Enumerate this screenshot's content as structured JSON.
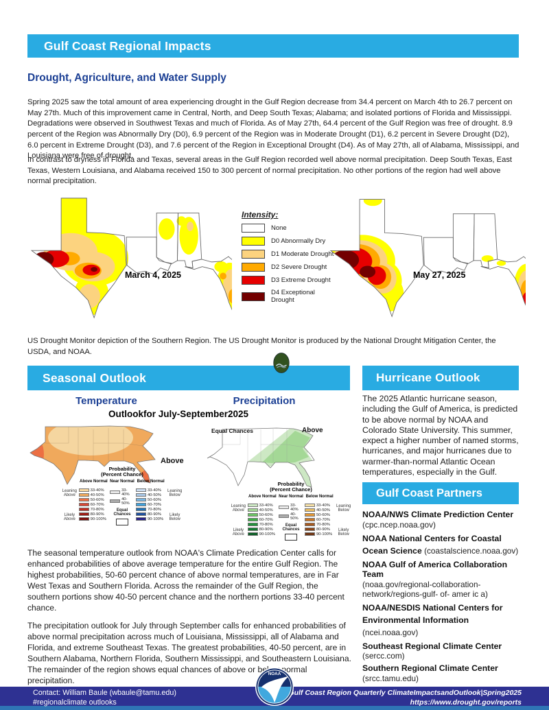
{
  "header": {
    "title": "Gulf Coast Regional Impacts"
  },
  "drought": {
    "heading": "Drought, Agriculture, and Water Supply",
    "para1": "Spring 2025 saw the total amount of area experiencing drought in the Gulf Region decrease from 34.4 percent on March 4th to 26.7 percent on May 27th. Much of this improvement came in Central, North, and Deep South Texas; Alabama; and isolated portions of Florida and Mississippi. Degradations were observed in Southwest Texas and much of Florida. As of May 27th, 64.4 percent of the Gulf Region was free of drought. 8.9 percent of the Region was Abnormally Dry (D0), 6.9 percent of the Region was in Moderate Drought (D1), 6.2 percent in Severe Drought (D2), 6.0 percent in Extreme Drought (D3), and 7.6 percent of the Region in Exceptional Drought (D4). As of May 27th, all of Alabama, Mississippi, and Louisiana were free of drought.",
    "para2": "In contrast to dryness in Florida and Texas, several areas in the Gulf Region recorded well above normal precipitation. Deep South Texas, East Texas, Western Louisiana, and Alabama received 150 to 300 percent of normal precipitation. No other portions of the region had well above normal precipitation.",
    "legend_title": "Intensity:",
    "legend": [
      {
        "label": "None",
        "color": "#FFFFFF"
      },
      {
        "label": "D0 Abnormally Dry",
        "color": "#FFFF00"
      },
      {
        "label": "D1 Moderate Drought",
        "color": "#FCD37F"
      },
      {
        "label": "D2 Severe Drought",
        "color": "#FFAA00"
      },
      {
        "label": "D3 Extreme Drought",
        "color": "#E60000"
      },
      {
        "label": "D4 Exceptional Drought",
        "color": "#730000"
      }
    ],
    "map_label_march": "March 4, 2025",
    "map_label_may": "May 27, 2025",
    "caption": "US Drought Monitor depiction of the Southern Region. The US Drought Monitor is produced by the National Drought Mitigation Center, the USDA, and NOAA."
  },
  "seasonal": {
    "banner": "Seasonal Outlook",
    "temperature_heading": "Temperature",
    "precipitation_heading": "Precipitation",
    "subtitle": "Outlookfor July-September2025",
    "para1": "The seasonal temperature outlook from NOAA's Climate Predication Center calls for enhanced probabilities of above average temperature for the entire Gulf Region. The highest probabilities, 50-60 percent chance of above normal temperatures, are in Far West Texas and Southern Florida. Across the remainder of the Gulf Region, the southern portions show 40-50 percent chance and the northern portions 33-40 percent chance.",
    "para2": "The precipitation outlook for July through September calls for enhanced probabilities of above normal precipitation across much of Louisiana, Mississippi, all of Alabama and Florida, and extreme Southeast Texas. The greatest probabilities, 40-50 percent, are in Southern Alabama, Northern Florida, Southern Mississippi, and Southeastern Louisiana. The remainder of the region shows equal chances of above or below normal precipitation."
  },
  "cpc": {
    "legend_title1": "Probability",
    "legend_title2": "(Percent Chance)",
    "col_above": "Above Normal",
    "col_near": "Near Normal",
    "col_below": "Below Normal",
    "equal_chances": "Equal Chances",
    "side_labels": [
      "Leaning Above",
      "Likely Above",
      "Leaning Below",
      "Likely Below"
    ],
    "percent_labels": [
      "33-40%",
      "40-50%",
      "50-60%",
      "60-70%",
      "70-80%",
      "80-90%",
      "90-100%"
    ],
    "near_percent_labels": [
      "33-40%",
      "40-50%"
    ],
    "near_colors": [
      "#E9E9E9",
      "#ABABAB"
    ],
    "temp_above_colors": [
      "#F5D6A0",
      "#F0A95C",
      "#EC6F43",
      "#DA4634",
      "#C02D22",
      "#9E1B15",
      "#7C0E0C"
    ],
    "temp_below_colors": [
      "#CBDCF0",
      "#A9C8E8",
      "#77B5E2",
      "#41A3DE",
      "#2272B5",
      "#1D4F9E",
      "#252088"
    ],
    "precip_above_colors": [
      "#CDE8C4",
      "#A4D896",
      "#6CC363",
      "#3EAE46",
      "#22933B",
      "#137A31",
      "#0A5F26"
    ],
    "precip_below_colors": [
      "#F4DFA6",
      "#EBBE63",
      "#E09635",
      "#C97626",
      "#A85A1E",
      "#8B4517",
      "#6E3310"
    ],
    "temp_map_above_label": "Above",
    "precip_map_above_label": "Above",
    "precip_map_equal_label": "Equal Chances"
  },
  "hurricane": {
    "banner": "Hurricane Outlook",
    "text": "The 2025 Atlantic hurricane season, including the Gulf of America, is predicted to be above normal by NOAA and Colorado State University. This summer, expect a higher number of named storms, hurricanes, and major hurricanes due to warmer-than-normal Atlantic Ocean temperatures, especially in the Gulf."
  },
  "partners": {
    "banner": "Gulf Coast Partners",
    "items": [
      {
        "name": "NOAA/NWS Climate Prediction Center",
        "url": "(cpc.ncep.noaa.gov)",
        "inline": false
      },
      {
        "name": "NOAA National Centers for Coastal Ocean Science",
        "url": "(coastalscience.noaa.gov)",
        "inline": true
      },
      {
        "name": "NOAA Gulf of America Collaboration Team",
        "url": "(noaa.gov/regional-collaboration-network/regions-gulf- of- amer ic a)",
        "inline": false
      },
      {
        "name": "NOAA/NESDIS National Centers for Environmental Information",
        "url": "(ncei.noaa.gov)",
        "inline": true
      },
      {
        "name": "Southeast Regional Climate Center",
        "url": "(sercc.com)",
        "inline": false
      },
      {
        "name": "Southern Regional Climate Center",
        "url": "(srcc.tamu.edu)",
        "inline": false
      }
    ]
  },
  "footer": {
    "contact_line1": "Contact: William Baule (wbaule@tamu.edu)",
    "contact_line2": "#regionalclimate outlooks",
    "right_line1": "Gulf Coast Region Quarterly ClimateImpactsandOutlook|Spring2025",
    "right_line2": "https://www.drought.gov/reports"
  },
  "colors": {
    "banner_blue": "#29ABE2",
    "heading_blue": "#1B3F94",
    "footer_navy": "#2E3192",
    "footer_strip": "#2F75B5"
  }
}
